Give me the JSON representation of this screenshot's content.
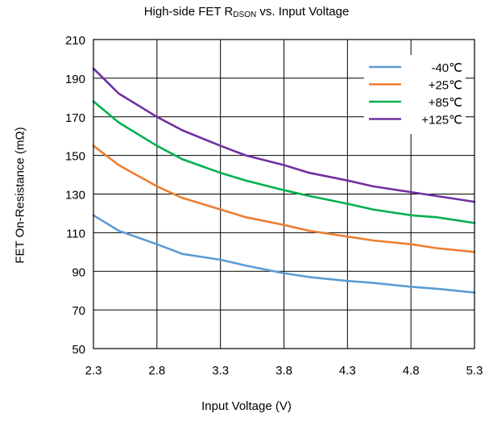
{
  "chart_data": {
    "type": "line",
    "title": {
      "prefix": "High-side FET R",
      "subscript": "DSON",
      "suffix": " vs. Input Voltage"
    },
    "xlabel": "Input Voltage (V)",
    "ylabel": "FET On-Resistance (mΩ)",
    "xlim": [
      2.3,
      5.3
    ],
    "ylim": [
      50,
      210
    ],
    "x_ticks": [
      "2.3",
      "2.8",
      "3.3",
      "3.8",
      "4.3",
      "4.8",
      "5.3"
    ],
    "y_ticks": [
      "50",
      "70",
      "90",
      "110",
      "130",
      "150",
      "170",
      "190",
      "210"
    ],
    "grid": true,
    "legend_position": "top-right",
    "x": [
      2.3,
      2.5,
      2.8,
      3.0,
      3.3,
      3.5,
      3.8,
      4.0,
      4.3,
      4.5,
      4.8,
      5.0,
      5.3
    ],
    "series": [
      {
        "name": "-40℃",
        "color": "#5B9BD5",
        "values": [
          119,
          111,
          104,
          99,
          96,
          93,
          89,
          87,
          85,
          84,
          82,
          81,
          79
        ]
      },
      {
        "name": "+25℃",
        "color": "#ED7D31",
        "values": [
          155,
          145,
          134,
          128,
          122,
          118,
          114,
          111,
          108,
          106,
          104,
          102,
          100
        ]
      },
      {
        "name": "+85℃",
        "color": "#00B050",
        "values": [
          178,
          167,
          155,
          148,
          141,
          137,
          132,
          129,
          125,
          122,
          119,
          118,
          115
        ]
      },
      {
        "name": "+125℃",
        "color": "#7030A0",
        "values": [
          195,
          182,
          170,
          163,
          155,
          150,
          145,
          141,
          137,
          134,
          131,
          129,
          126
        ]
      }
    ]
  }
}
